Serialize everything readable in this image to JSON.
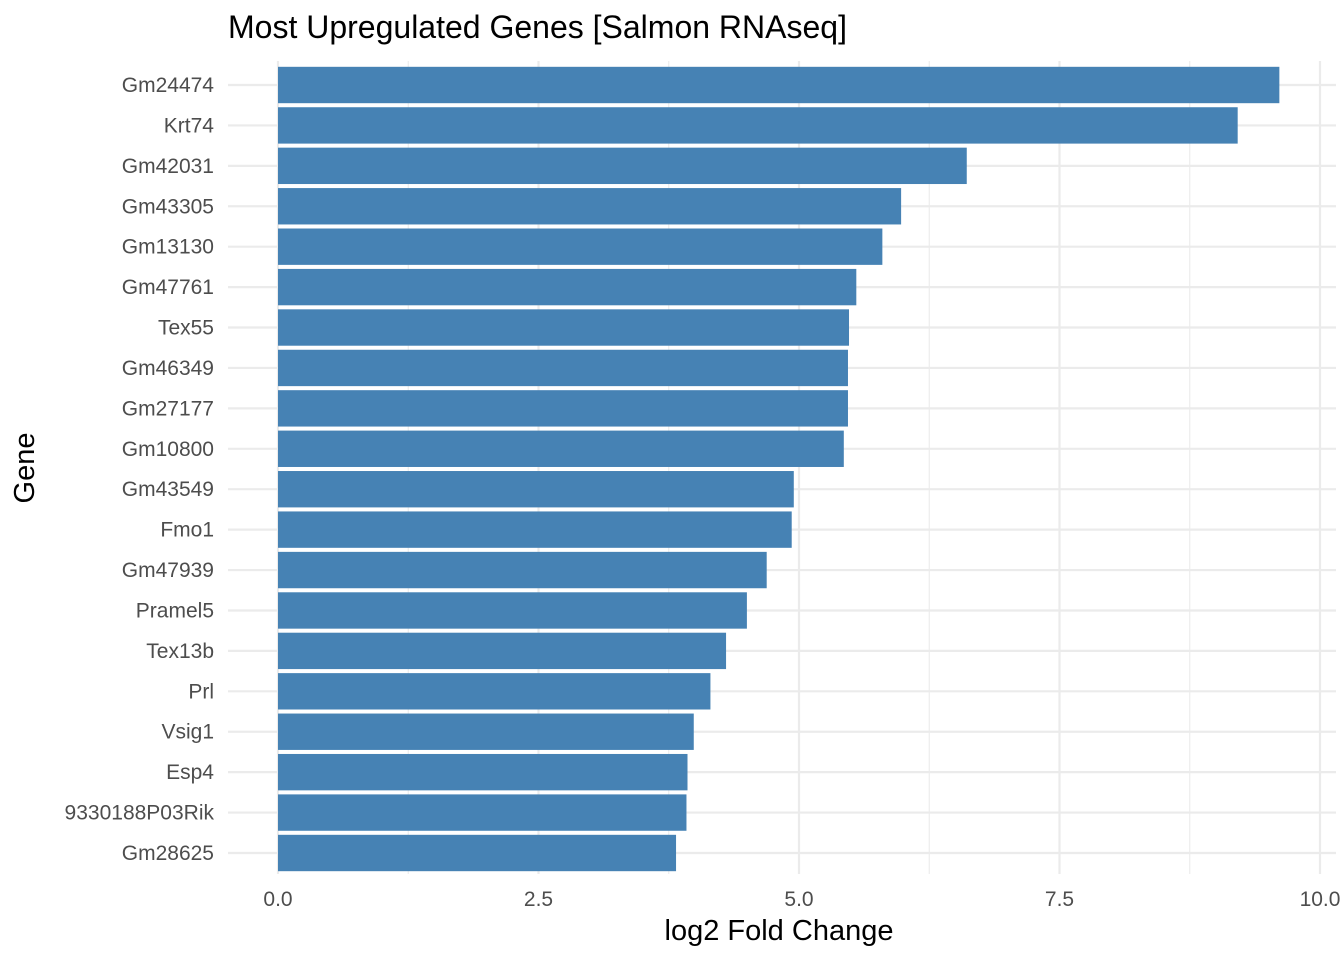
{
  "chart_data": {
    "type": "bar",
    "orientation": "horizontal",
    "title": "Most Upregulated Genes [Salmon RNAseq]",
    "xlabel": "log2 Fold Change",
    "ylabel": "Gene",
    "xlim": [
      0,
      10
    ],
    "xticks": [
      0,
      2.5,
      5,
      7.5,
      10
    ],
    "xtick_labels": [
      "0.0",
      "2.5",
      "5.0",
      "7.5",
      "10.0"
    ],
    "grid": true,
    "bar_color": "#4682B4",
    "categories": [
      "Gm24474",
      "Krt74",
      "Gm42031",
      "Gm43305",
      "Gm13130",
      "Gm47761",
      "Tex55",
      "Gm46349",
      "Gm27177",
      "Gm10800",
      "Gm43549",
      "Fmo1",
      "Gm47939",
      "Pramel5",
      "Tex13b",
      "Prl",
      "Vsig1",
      "Esp4",
      "9330188P03Rik",
      "Gm28625"
    ],
    "values": [
      9.61,
      9.21,
      6.61,
      5.98,
      5.8,
      5.55,
      5.48,
      5.47,
      5.47,
      5.43,
      4.95,
      4.93,
      4.69,
      4.5,
      4.3,
      4.15,
      3.99,
      3.93,
      3.92,
      3.82
    ]
  }
}
